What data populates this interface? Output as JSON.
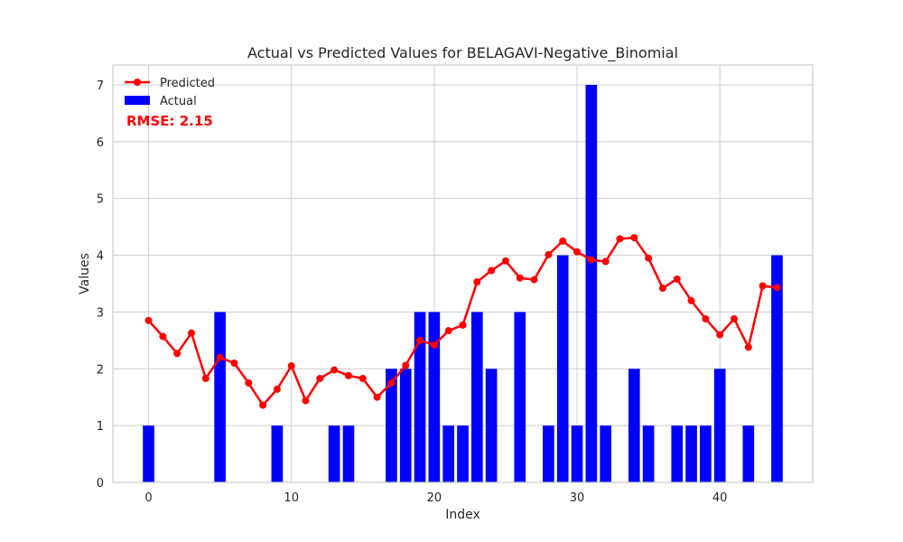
{
  "chart_data": {
    "type": "bar",
    "title": "Actual vs Predicted Values for BELAGAVI-Negative_Binomial",
    "xlabel": "Index",
    "ylabel": "Values",
    "xlim": [
      -2.5,
      46.5
    ],
    "ylim": [
      0,
      7.35
    ],
    "xticks": [
      0,
      10,
      20,
      30,
      40
    ],
    "yticks": [
      0,
      1,
      2,
      3,
      4,
      5,
      6,
      7
    ],
    "grid": true,
    "legend_position": "top-left",
    "annotation": "RMSE: 2.15",
    "series": [
      {
        "name": "Predicted",
        "kind": "line",
        "color": "#ff0000",
        "x": [
          0,
          1,
          2,
          3,
          4,
          5,
          6,
          7,
          8,
          9,
          10,
          11,
          12,
          13,
          14,
          15,
          16,
          17,
          18,
          19,
          20,
          21,
          22,
          23,
          24,
          25,
          26,
          27,
          28,
          29,
          30,
          31,
          32,
          33,
          34,
          35,
          36,
          37,
          38,
          39,
          40,
          41,
          42,
          43,
          44
        ],
        "values": [
          2.85,
          2.57,
          2.27,
          2.63,
          1.83,
          2.2,
          2.1,
          1.75,
          1.36,
          1.64,
          2.05,
          1.44,
          1.83,
          1.98,
          1.88,
          1.83,
          1.5,
          1.75,
          2.06,
          2.5,
          2.42,
          2.67,
          2.77,
          3.53,
          3.73,
          3.9,
          3.6,
          3.57,
          4.01,
          4.25,
          4.06,
          3.92,
          3.89,
          4.29,
          4.31,
          3.95,
          3.42,
          3.58,
          3.2,
          2.88,
          2.6,
          2.88,
          2.38,
          3.46,
          3.43
        ]
      },
      {
        "name": "Actual",
        "kind": "bar",
        "color": "#0000ff",
        "x": [
          0,
          1,
          2,
          3,
          4,
          5,
          6,
          7,
          8,
          9,
          10,
          11,
          12,
          13,
          14,
          15,
          16,
          17,
          18,
          19,
          20,
          21,
          22,
          23,
          24,
          25,
          26,
          27,
          28,
          29,
          30,
          31,
          32,
          33,
          34,
          35,
          36,
          37,
          38,
          39,
          40,
          41,
          42,
          43,
          44
        ],
        "values": [
          1,
          0,
          0,
          0,
          0,
          3,
          0,
          0,
          0,
          1,
          0,
          0,
          0,
          1,
          1,
          0,
          0,
          2,
          2,
          3,
          3,
          1,
          1,
          3,
          2,
          0,
          3,
          0,
          1,
          4,
          1,
          7,
          1,
          0,
          2,
          1,
          0,
          1,
          1,
          1,
          2,
          0,
          1,
          0,
          4
        ]
      }
    ]
  }
}
